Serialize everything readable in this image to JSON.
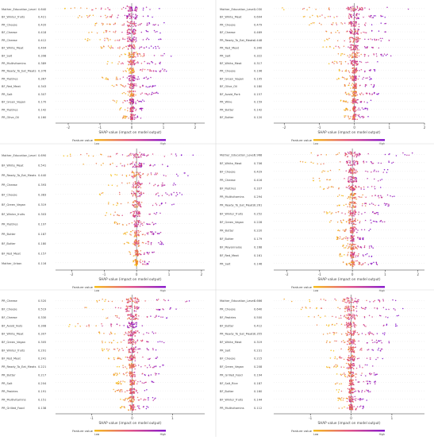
{
  "colors": {
    "low": "#f5b800",
    "mid": "#e0457a",
    "high": "#7a00c8",
    "zero_line": "#888888",
    "axis": "#333333",
    "text": "#444444"
  },
  "common": {
    "xlabel": "SHAP value (impact on model output)",
    "legend_title": "Feature value",
    "legend_low": "Low",
    "legend_high": "High"
  },
  "chart_data": [
    {
      "type": "scatter",
      "xticks": [
        -2,
        -1,
        0,
        1,
        2
      ],
      "xlim": [
        -2.4,
        2.3
      ],
      "xlabel": "SHAP value (impact on model output)",
      "features": [
        {
          "name": "Mother_Education_Level",
          "value": "0.640",
          "spread": [
            -2.2,
            0.9
          ]
        },
        {
          "name": "BF_Winter_fruits",
          "value": "0.421",
          "spread": [
            -1.9,
            0.7
          ]
        },
        {
          "name": "PR_Cheese",
          "value": "0.420",
          "spread": [
            -1.2,
            1.1
          ]
        },
        {
          "name": "BF_Cheese",
          "value": "0.418",
          "spread": [
            -1.5,
            1.0
          ]
        },
        {
          "name": "PR_Cheese",
          "value": "0.412",
          "spread": [
            -1.6,
            1.0
          ]
        },
        {
          "name": "BF_White_Meat",
          "value": "0.404",
          "spread": [
            -1.0,
            0.9
          ]
        },
        {
          "name": "BF_Salt",
          "value": "0.398",
          "spread": [
            -0.4,
            1.3
          ]
        },
        {
          "name": "PR_Multivitamins",
          "value": "0.389",
          "spread": [
            -0.8,
            1.0
          ]
        },
        {
          "name": "PR_Ready_To_Eat_Meats",
          "value": "0.376",
          "spread": [
            -0.3,
            1.1
          ]
        },
        {
          "name": "PR_Pastries",
          "value": "0.367",
          "spread": [
            -1.0,
            0.6
          ]
        },
        {
          "name": "BF_Red_Meat",
          "value": "0.343",
          "spread": [
            -0.7,
            0.8
          ]
        },
        {
          "name": "PR_Salt",
          "value": "0.307",
          "spread": [
            -0.3,
            0.9
          ]
        },
        {
          "name": "BF_Green_Vegan",
          "value": "0.170",
          "spread": [
            -0.6,
            0.4
          ]
        },
        {
          "name": "PR_Pastries",
          "value": "0.142",
          "spread": [
            -0.4,
            0.4
          ]
        },
        {
          "name": "PR_Olive_Oil",
          "value": "0.160",
          "spread": [
            -0.3,
            0.3
          ]
        }
      ]
    },
    {
      "type": "scatter",
      "xticks": [
        -2,
        -1,
        0,
        1,
        2
      ],
      "xlim": [
        -2.3,
        2.0
      ],
      "xlabel": "SHAP value (impact on model output)",
      "features": [
        {
          "name": "Mother_Education_Level",
          "value": "1.030",
          "spread": [
            -2.2,
            1.8
          ]
        },
        {
          "name": "BF_White_Meat",
          "value": "0.694",
          "spread": [
            -1.6,
            1.0
          ]
        },
        {
          "name": "PR_Cheese",
          "value": "0.479",
          "spread": [
            -1.3,
            0.9
          ]
        },
        {
          "name": "BF_Cheese",
          "value": "0.469",
          "spread": [
            -1.2,
            1.0
          ]
        },
        {
          "name": "PR_Ready_To_Eat_Meats",
          "value": "0.448",
          "spread": [
            -0.9,
            1.2
          ]
        },
        {
          "name": "PR_Red_Meat",
          "value": "0.340",
          "spread": [
            -0.9,
            0.8
          ]
        },
        {
          "name": "PR_Salt",
          "value": "0.322",
          "spread": [
            -0.5,
            1.1
          ]
        },
        {
          "name": "BF_White_Meat",
          "value": "0.317",
          "spread": [
            -0.8,
            0.7
          ]
        },
        {
          "name": "PR_Cheese",
          "value": "0.196",
          "spread": [
            -0.5,
            0.6
          ]
        },
        {
          "name": "BF_Green_Vegan",
          "value": "0.195",
          "spread": [
            -0.5,
            0.5
          ]
        },
        {
          "name": "BF_Olive_Oil",
          "value": "0.180",
          "spread": [
            -0.3,
            0.6
          ]
        },
        {
          "name": "BF_Avoid_Pork",
          "value": "0.157",
          "spread": [
            -0.3,
            0.7
          ]
        },
        {
          "name": "PR_Wine",
          "value": "0.159",
          "spread": [
            -0.4,
            0.5
          ]
        },
        {
          "name": "PR_Butter",
          "value": "0.142",
          "spread": [
            -0.3,
            0.4
          ]
        },
        {
          "name": "BF_Butter",
          "value": "0.120",
          "spread": [
            -0.3,
            0.4
          ]
        }
      ]
    },
    {
      "type": "scatter",
      "xticks": [
        -2,
        -1,
        0,
        1,
        2
      ],
      "xlim": [
        -2.5,
        2.1
      ],
      "xlabel": "SHAP value (impact on model output)",
      "features": [
        {
          "name": "Mother_Education_Level",
          "value": "0.690",
          "spread": [
            -2.3,
            1.8
          ]
        },
        {
          "name": "BF_White_Meat",
          "value": "0.541",
          "spread": [
            -1.7,
            1.0
          ]
        },
        {
          "name": "PR_Ready_To_Eat_Meats",
          "value": "0.440",
          "spread": [
            -0.8,
            1.6
          ]
        },
        {
          "name": "PR_Cheese",
          "value": "0.393",
          "spread": [
            -1.0,
            1.2
          ]
        },
        {
          "name": "BF_Cheese",
          "value": "0.383",
          "spread": [
            -1.2,
            1.4
          ]
        },
        {
          "name": "BF_Green_Vegan",
          "value": "0.319",
          "spread": [
            -0.9,
            1.2
          ]
        },
        {
          "name": "BF_Winter_fruits",
          "value": "0.303",
          "spread": [
            -1.0,
            0.8
          ]
        },
        {
          "name": "PR_Pastries",
          "value": "0.197",
          "spread": [
            -0.7,
            0.6
          ]
        },
        {
          "name": "PR_Butter",
          "value": "0.187",
          "spread": [
            -0.4,
            0.8
          ]
        },
        {
          "name": "BF_Butter",
          "value": "0.180",
          "spread": [
            -0.4,
            0.9
          ]
        },
        {
          "name": "BF_Red_Meat",
          "value": "0.157",
          "spread": [
            -0.3,
            0.6
          ]
        },
        {
          "name": "Mother_Urban",
          "value": "0.116",
          "spread": [
            -0.1,
            0.5
          ]
        }
      ]
    },
    {
      "type": "scatter",
      "xticks": [
        -2,
        -1,
        0,
        1,
        2
      ],
      "xlim": [
        -2.4,
        2.2
      ],
      "xlabel": "SHAP value (impact on model output)",
      "features": [
        {
          "name": "Mother_Education_Level",
          "value": "0.968",
          "spread": [
            -2.0,
            2.0
          ]
        },
        {
          "name": "BF_White_Meat",
          "value": "0.706",
          "spread": [
            -1.6,
            1.3
          ]
        },
        {
          "name": "BF_Cheese",
          "value": "0.429",
          "spread": [
            -1.0,
            1.1
          ]
        },
        {
          "name": "PR_Cheese",
          "value": "0.416",
          "spread": [
            -1.2,
            1.0
          ]
        },
        {
          "name": "BF_Pastries",
          "value": "0.337",
          "spread": [
            -1.0,
            1.0
          ]
        },
        {
          "name": "PR_Multivitamins",
          "value": "0.294",
          "spread": [
            -0.5,
            1.4
          ]
        },
        {
          "name": "PR_Ready_To_Eat_Meats",
          "value": "0.261",
          "spread": [
            -0.5,
            1.3
          ]
        },
        {
          "name": "BF_Winter_fruits",
          "value": "0.252",
          "spread": [
            -0.9,
            0.9
          ]
        },
        {
          "name": "BF_Green_Vegan",
          "value": "0.228",
          "spread": [
            -0.7,
            1.0
          ]
        },
        {
          "name": "PR_Butter",
          "value": "0.220",
          "spread": [
            -0.5,
            0.6
          ]
        },
        {
          "name": "BF_Butter",
          "value": "0.179",
          "spread": [
            -0.5,
            0.4
          ]
        },
        {
          "name": "BF_Mayonnaise",
          "value": "0.168",
          "spread": [
            -0.3,
            0.7
          ]
        },
        {
          "name": "BF_Red_Meat",
          "value": "0.161",
          "spread": [
            -0.4,
            0.6
          ]
        },
        {
          "name": "PR_Salt",
          "value": "0.146",
          "spread": [
            -0.3,
            0.8
          ]
        }
      ]
    },
    {
      "type": "scatter",
      "xticks": [
        -1,
        0,
        1
      ],
      "xlim": [
        -1.9,
        1.8
      ],
      "xlabel": "SHAP value (impact on model output)",
      "features": [
        {
          "name": "PR_Cheese",
          "value": "0.520",
          "spread": [
            -1.1,
            1.6
          ]
        },
        {
          "name": "BF_Cheese",
          "value": "0.519",
          "spread": [
            -1.3,
            1.2
          ]
        },
        {
          "name": "BF_Cheese",
          "value": "0.330",
          "spread": [
            -0.9,
            0.9
          ]
        },
        {
          "name": "BF_Avoid_Nuts",
          "value": "0.308",
          "spread": [
            -1.6,
            0.3
          ]
        },
        {
          "name": "BF_White_Meat",
          "value": "0.307",
          "spread": [
            -0.9,
            0.8
          ]
        },
        {
          "name": "BF_Green_Vegan",
          "value": "0.305",
          "spread": [
            -0.8,
            0.8
          ]
        },
        {
          "name": "BF_Winter_fruits",
          "value": "0.291",
          "spread": [
            -0.8,
            0.7
          ]
        },
        {
          "name": "BF_Red_Meat",
          "value": "0.241",
          "spread": [
            -0.6,
            0.7
          ]
        },
        {
          "name": "PR_Ready_To_Eat_Meats",
          "value": "0.221",
          "spread": [
            -0.4,
            0.8
          ]
        },
        {
          "name": "PR_Butter",
          "value": "0.217",
          "spread": [
            -0.5,
            0.7
          ]
        },
        {
          "name": "PR_Salt",
          "value": "0.204",
          "spread": [
            -0.4,
            0.6
          ]
        },
        {
          "name": "PR_Pastries",
          "value": "0.191",
          "spread": [
            -0.5,
            0.5
          ]
        },
        {
          "name": "PR_Multivitamins",
          "value": "0.151",
          "spread": [
            -0.3,
            0.6
          ]
        },
        {
          "name": "PR_Grilled_Food",
          "value": "0.138",
          "spread": [
            -0.3,
            0.4
          ]
        }
      ]
    },
    {
      "type": "scatter",
      "xticks": [
        -1,
        0,
        1
      ],
      "xlim": [
        -1.9,
        1.8
      ],
      "xlabel": "SHAP value (impact on model output)",
      "features": [
        {
          "name": "Mother_Education_Level",
          "value": "0.666",
          "spread": [
            -1.7,
            1.6
          ]
        },
        {
          "name": "PR_Cheese",
          "value": "0.640",
          "spread": [
            -1.3,
            1.3
          ]
        },
        {
          "name": "BF_Pastries",
          "value": "0.500",
          "spread": [
            -1.1,
            1.2
          ]
        },
        {
          "name": "BF_Butter",
          "value": "0.412",
          "spread": [
            -0.9,
            1.2
          ]
        },
        {
          "name": "PR_Ready_To_Eat_Meats",
          "value": "0.355",
          "spread": [
            -0.8,
            1.1
          ]
        },
        {
          "name": "BF_White_Meat",
          "value": "0.319",
          "spread": [
            -0.7,
            1.0
          ]
        },
        {
          "name": "PR_Salt",
          "value": "0.231",
          "spread": [
            -0.5,
            0.8
          ]
        },
        {
          "name": "BF_Cheese",
          "value": "0.215",
          "spread": [
            -0.6,
            0.8
          ]
        },
        {
          "name": "BF_Green_Vegan",
          "value": "0.208",
          "spread": [
            -0.6,
            0.6
          ]
        },
        {
          "name": "PR_Grilled_Food",
          "value": "0.194",
          "spread": [
            -0.4,
            0.7
          ]
        },
        {
          "name": "BF_Salt_Rice",
          "value": "0.187",
          "spread": [
            -0.4,
            0.6
          ]
        },
        {
          "name": "BF_Butter",
          "value": "0.160",
          "spread": [
            -0.4,
            0.5
          ]
        },
        {
          "name": "BF_Winter_fruits",
          "value": "0.144",
          "spread": [
            -0.4,
            0.4
          ]
        },
        {
          "name": "PR_Multivitamins",
          "value": "0.112",
          "spread": [
            -0.3,
            0.4
          ]
        }
      ]
    }
  ]
}
